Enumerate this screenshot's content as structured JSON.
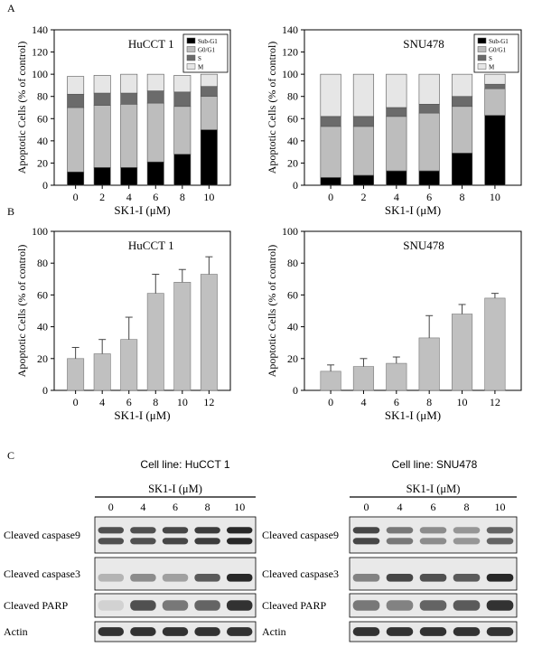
{
  "panels": {
    "a": {
      "letter": "A"
    },
    "b": {
      "letter": "B"
    },
    "c": {
      "letter": "C"
    }
  },
  "chart_data": [
    {
      "id": "A-HuCCT1",
      "type": "bar",
      "stacked": true,
      "title": "HuCCT 1",
      "xlabel": "SK1-I (μM)",
      "ylabel": "Apoptotic Cells (% of control)",
      "ylim": [
        0,
        140
      ],
      "yticks": [
        0,
        20,
        40,
        60,
        80,
        100,
        120,
        140
      ],
      "categories": [
        "0",
        "2",
        "4",
        "6",
        "8",
        "10"
      ],
      "legend_position": "top-right",
      "series": [
        {
          "name": "Sub-G1",
          "color": "#000000",
          "values": [
            12,
            16,
            16,
            21,
            28,
            50
          ]
        },
        {
          "name": "G0/G1",
          "color": "#bdbdbd",
          "values": [
            58,
            56,
            57,
            53,
            43,
            30
          ]
        },
        {
          "name": "S",
          "color": "#6b6b6b",
          "values": [
            12,
            11,
            10,
            11,
            13,
            9
          ]
        },
        {
          "name": "M",
          "color": "#e6e6e6",
          "values": [
            16,
            16,
            17,
            15,
            15,
            11
          ]
        }
      ]
    },
    {
      "id": "A-SNU478",
      "type": "bar",
      "stacked": true,
      "title": "SNU478",
      "xlabel": "SK1-I (μM)",
      "ylabel": "Apoptotic Cells (% of control)",
      "ylim": [
        0,
        140
      ],
      "yticks": [
        0,
        20,
        40,
        60,
        80,
        100,
        120,
        140
      ],
      "categories": [
        "0",
        "2",
        "4",
        "6",
        "8",
        "10"
      ],
      "legend_position": "top-right",
      "series": [
        {
          "name": "Sub-G1",
          "color": "#000000",
          "values": [
            7,
            9,
            13,
            13,
            29,
            63
          ]
        },
        {
          "name": "G0/G1",
          "color": "#bdbdbd",
          "values": [
            46,
            44,
            49,
            52,
            42,
            24
          ]
        },
        {
          "name": "S",
          "color": "#6b6b6b",
          "values": [
            9,
            9,
            8,
            8,
            9,
            4
          ]
        },
        {
          "name": "M",
          "color": "#e6e6e6",
          "values": [
            38,
            38,
            30,
            27,
            20,
            9
          ]
        }
      ]
    },
    {
      "id": "B-HuCCT1",
      "type": "bar",
      "title": "HuCCT 1",
      "xlabel": "SK1-I (μM)",
      "ylabel": "Apoptotic Cells (% of control)",
      "ylim": [
        0,
        100
      ],
      "yticks": [
        0,
        20,
        40,
        60,
        80,
        100
      ],
      "categories": [
        "0",
        "4",
        "6",
        "8",
        "10",
        "12"
      ],
      "color": "#c0c0c0",
      "values": [
        20,
        23,
        32,
        61,
        68,
        73
      ],
      "errors": [
        7,
        9,
        14,
        12,
        8,
        11
      ]
    },
    {
      "id": "B-SNU478",
      "type": "bar",
      "title": "SNU478",
      "xlabel": "SK1-I (μM)",
      "ylabel": "Apoptotic Cells (% of control)",
      "ylim": [
        0,
        100
      ],
      "yticks": [
        0,
        20,
        40,
        60,
        80,
        100
      ],
      "categories": [
        "0",
        "4",
        "6",
        "8",
        "10",
        "12"
      ],
      "color": "#c0c0c0",
      "values": [
        12,
        15,
        17,
        33,
        48,
        58
      ],
      "errors": [
        4,
        5,
        4,
        14,
        6,
        3
      ]
    }
  ],
  "blots": [
    {
      "id": "blot-HuCCT1",
      "cell_line_label": "Cell line: HuCCT 1",
      "treatment_label": "SK1-I (μM)",
      "lanes": [
        "0",
        "4",
        "6",
        "8",
        "10"
      ],
      "rows": [
        {
          "label": "Cleaved caspase9",
          "intensity": [
            0.75,
            0.75,
            0.8,
            0.85,
            0.95
          ]
        },
        {
          "label": "Cleaved caspase3",
          "intensity": [
            0.25,
            0.45,
            0.35,
            0.7,
            0.95
          ]
        },
        {
          "label": "Cleaved PARP",
          "intensity": [
            0.1,
            0.75,
            0.55,
            0.65,
            0.9
          ]
        },
        {
          "label": "Actin",
          "intensity": [
            0.9,
            0.9,
            0.9,
            0.9,
            0.9
          ]
        }
      ]
    },
    {
      "id": "blot-SNU478",
      "cell_line_label": "Cell line: SNU478",
      "treatment_label": "SK1-I (μM)",
      "lanes": [
        "0",
        "4",
        "6",
        "8",
        "10"
      ],
      "rows": [
        {
          "label": "Cleaved caspase9",
          "intensity": [
            0.8,
            0.55,
            0.45,
            0.4,
            0.65
          ]
        },
        {
          "label": "Cleaved caspase3",
          "intensity": [
            0.5,
            0.8,
            0.75,
            0.7,
            0.95
          ]
        },
        {
          "label": "Cleaved PARP",
          "intensity": [
            0.55,
            0.5,
            0.65,
            0.7,
            0.9
          ]
        },
        {
          "label": "Actin",
          "intensity": [
            0.9,
            0.9,
            0.9,
            0.9,
            0.9
          ]
        }
      ]
    }
  ]
}
